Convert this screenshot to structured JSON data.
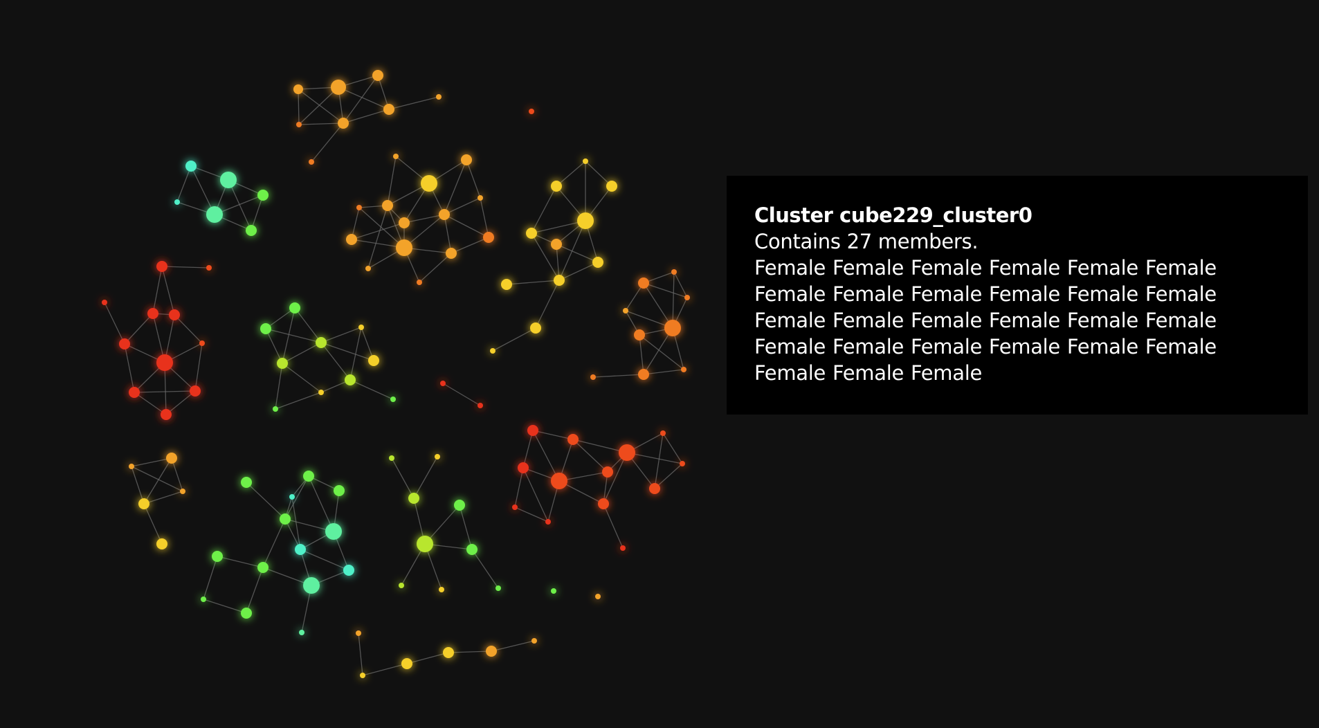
{
  "tooltip": {
    "title": "Cluster cube229_cluster0",
    "members_line": "Contains 27 members.",
    "members_list": "Female Female Female Female Female Female Female Female Female Female Female Female Female Female Female Female Female Female Female Female Female Female Female Female Female Female Female"
  },
  "colors": {
    "background": "#111111",
    "edge": "#6b6b6b",
    "tooltip_background": "#000000",
    "tooltip_text": "#ffffff",
    "red": "#e8321c",
    "red_orange": "#ee4b1e",
    "orange": "#f07c24",
    "amber": "#f3a32c",
    "yellow": "#f5cf2c",
    "yellow_green": "#b8e62e",
    "green": "#6ef04a",
    "aqua_green": "#5ef0a0",
    "teal": "#4ff0c8"
  }
}
